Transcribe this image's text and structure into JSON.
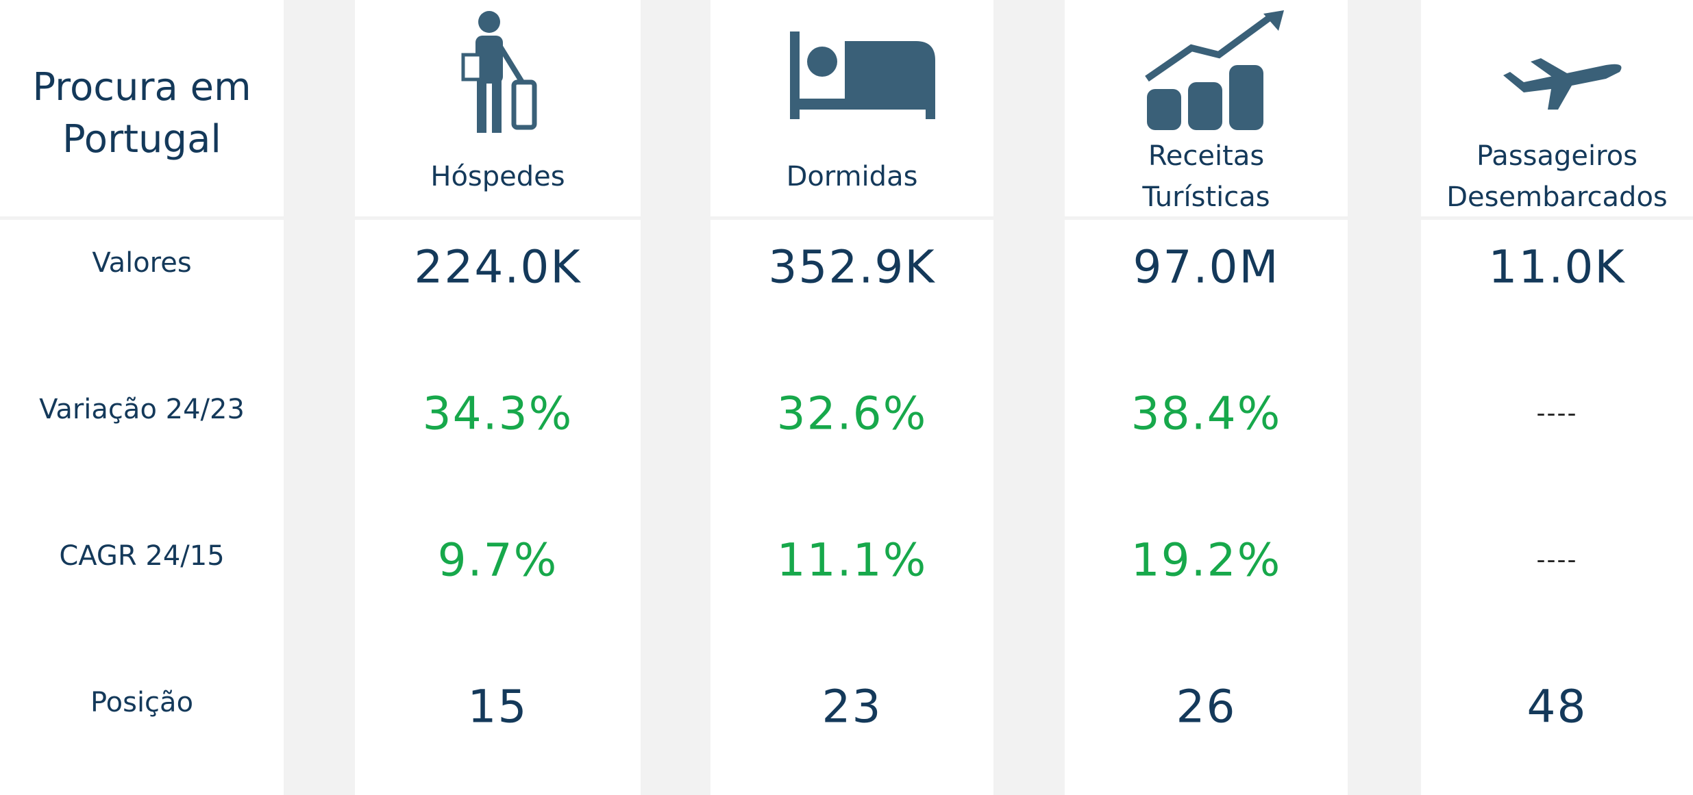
{
  "header": {
    "title": "Procura em Portugal"
  },
  "row_labels": [
    "Valores",
    "Variação 24/23",
    "CAGR 24/15",
    "Posição"
  ],
  "columns": [
    {
      "name": "Hóspedes",
      "valores": "224.0K",
      "variacao": "34.3%",
      "cagr": "9.7%",
      "posicao": "15"
    },
    {
      "name": "Dormidas",
      "valores": "352.9K",
      "variacao": "32.6%",
      "cagr": "11.1%",
      "posicao": "23"
    },
    {
      "name": "Receitas Turísticas",
      "valores": "97.0M",
      "variacao": "38.4%",
      "cagr": "19.2%",
      "posicao": "26"
    },
    {
      "name": "Passageiros Desembarcados",
      "valores": "11.0K",
      "variacao": "----",
      "cagr": "----",
      "posicao": "48"
    }
  ]
}
